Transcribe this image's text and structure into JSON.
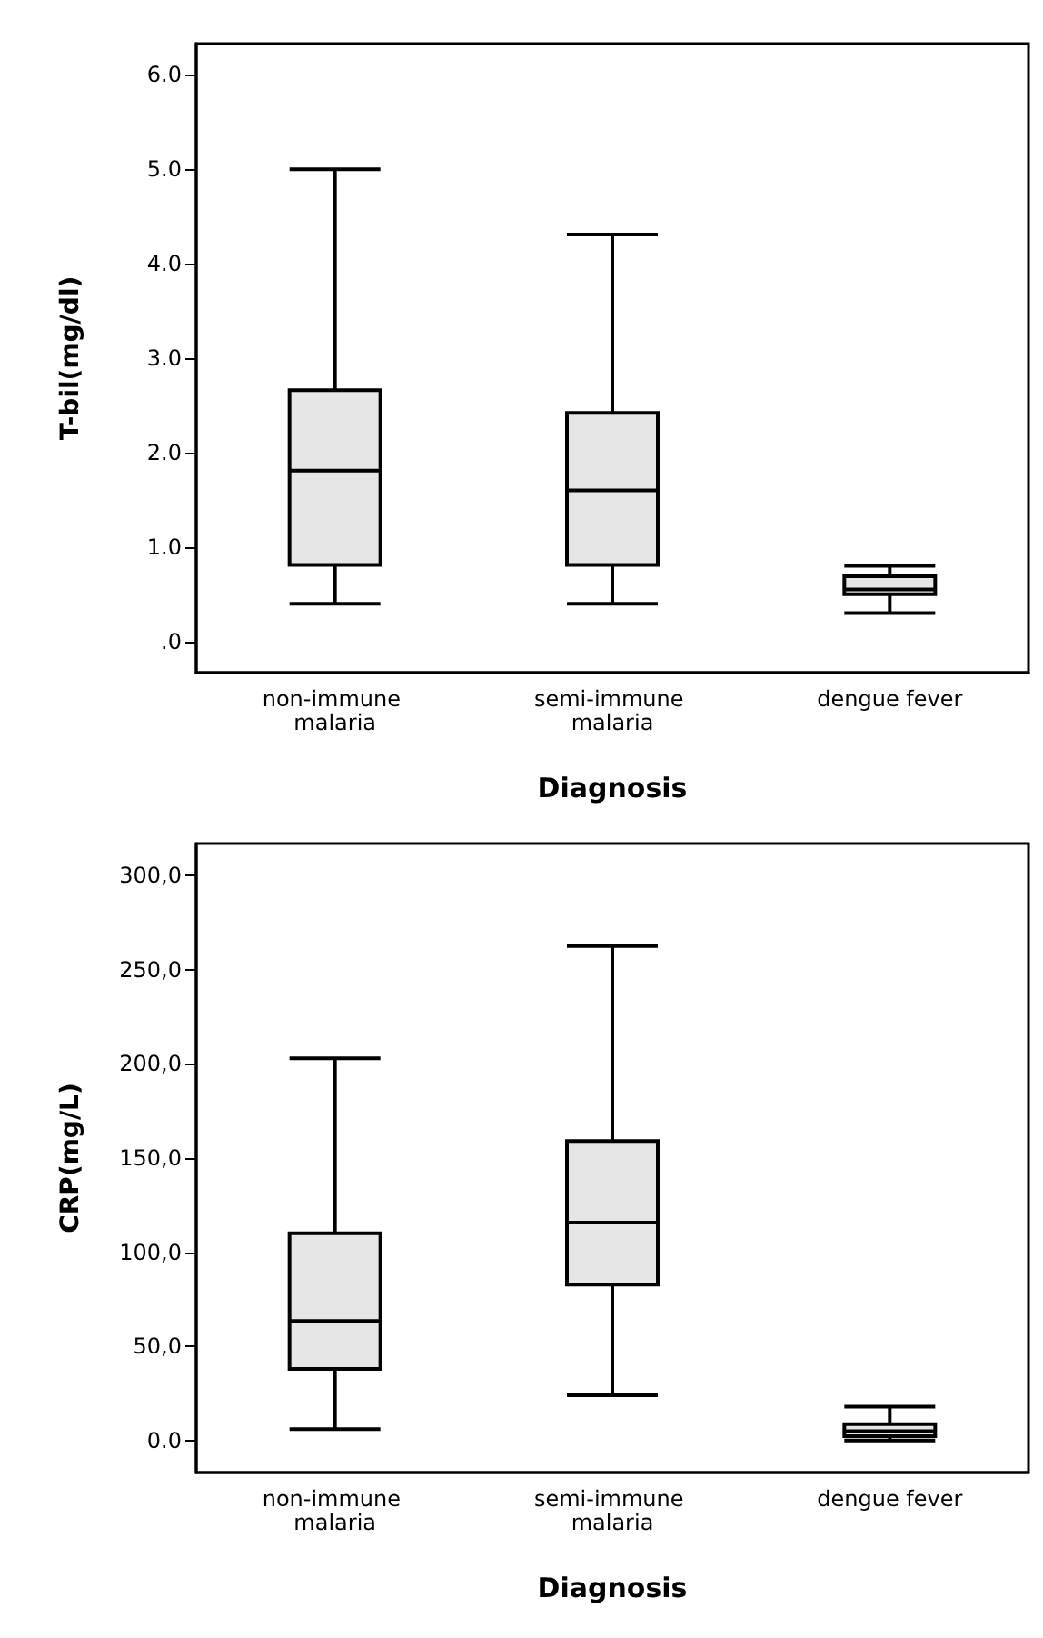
{
  "chart_data": [
    {
      "type": "box",
      "xlabel": "Diagnosis",
      "ylabel": "T-bil(mg/dl)",
      "categories": [
        "non-immune malaria",
        "semi-immune malaria",
        "dengue fever"
      ],
      "color": "#e6e6e6",
      "ylim": [
        -0.33,
        6.33
      ],
      "yticks": [
        {
          "value": 0,
          "label": ".0"
        },
        {
          "value": 1,
          "label": "1.0"
        },
        {
          "value": 2,
          "label": "2.0"
        },
        {
          "value": 3,
          "label": "3.0"
        },
        {
          "value": 4,
          "label": "4.0"
        },
        {
          "value": 5,
          "label": "5.0"
        },
        {
          "value": 6,
          "label": "6.0"
        }
      ],
      "grid": false,
      "boxes": [
        {
          "low": 0.4,
          "q1": 0.81,
          "median": 1.81,
          "q3": 2.66,
          "high": 5.0
        },
        {
          "low": 0.4,
          "q1": 0.81,
          "median": 1.6,
          "q3": 2.42,
          "high": 4.31
        },
        {
          "low": 0.3,
          "q1": 0.5,
          "median": 0.55,
          "q3": 0.69,
          "high": 0.8
        }
      ]
    },
    {
      "type": "box",
      "xlabel": "Diagnosis",
      "ylabel": "CRP(mg/L)",
      "categories": [
        "non-immune malaria",
        "semi-immune malaria",
        "dengue fever"
      ],
      "color": "#e6e6e6",
      "ylim": [
        -17,
        317
      ],
      "yticks": [
        {
          "value": 0,
          "label": "0.0"
        },
        {
          "value": 50,
          "label": "50,0"
        },
        {
          "value": 100,
          "label": "100,0"
        },
        {
          "value": 150,
          "label": "150,0"
        },
        {
          "value": 200,
          "label": "200,0"
        },
        {
          "value": 250,
          "label": "250,0"
        },
        {
          "value": 300,
          "label": "300,0"
        }
      ],
      "grid": false,
      "boxes": [
        {
          "low": 6,
          "q1": 38,
          "median": 63.5,
          "q3": 110,
          "high": 203
        },
        {
          "low": 24,
          "q1": 82.8,
          "median": 115.7,
          "q3": 159,
          "high": 262.6
        },
        {
          "low": 0,
          "q1": 2.3,
          "median": 5,
          "q3": 8.7,
          "high": 18
        }
      ]
    }
  ]
}
